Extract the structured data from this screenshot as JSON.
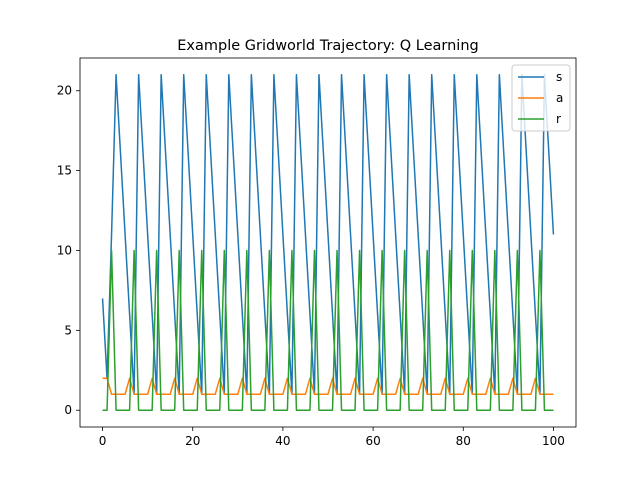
{
  "chart_data": {
    "type": "line",
    "title": "Example Gridworld Trajectory: Q Learning",
    "xlabel": "",
    "ylabel": "",
    "xlim": [
      -5,
      105
    ],
    "ylim": [
      -1.05,
      22.05
    ],
    "xticks": [
      0,
      20,
      40,
      60,
      80,
      100
    ],
    "yticks": [
      0,
      5,
      10,
      15,
      20
    ],
    "grid": false,
    "legend_position": "top-right",
    "series": [
      {
        "name": "s",
        "color": "#1f77b4",
        "x": [
          0,
          1,
          2,
          3,
          4,
          5,
          6,
          7,
          8,
          9,
          10,
          11,
          12,
          13,
          14,
          15,
          16,
          17,
          18,
          19,
          20,
          21,
          22,
          23,
          24,
          25,
          26,
          27,
          28,
          29,
          30,
          31,
          32,
          33,
          34,
          35,
          36,
          37,
          38,
          39,
          40,
          41,
          42,
          43,
          44,
          45,
          46,
          47,
          48,
          49,
          50,
          51,
          52,
          53,
          54,
          55,
          56,
          57,
          58,
          59,
          60,
          61,
          62,
          63,
          64,
          65,
          66,
          67,
          68,
          69,
          70,
          71,
          72,
          73,
          74,
          75,
          76,
          77,
          78,
          79,
          80,
          81,
          82,
          83,
          84,
          85,
          86,
          87,
          88,
          89,
          90,
          91,
          92,
          93,
          94,
          95,
          96,
          97,
          98,
          99,
          100
        ],
        "values": [
          7,
          2,
          11,
          21,
          16,
          11,
          6,
          1,
          21,
          16,
          11,
          6,
          1,
          21,
          16,
          11,
          6,
          1,
          21,
          16,
          11,
          6,
          1,
          21,
          16,
          11,
          6,
          1,
          21,
          16,
          11,
          6,
          1,
          21,
          16,
          11,
          6,
          1,
          21,
          16,
          11,
          6,
          1,
          21,
          16,
          11,
          6,
          1,
          21,
          16,
          11,
          6,
          1,
          21,
          16,
          11,
          6,
          1,
          21,
          16,
          11,
          6,
          1,
          21,
          16,
          11,
          6,
          1,
          21,
          16,
          11,
          6,
          1,
          21,
          16,
          11,
          6,
          1,
          21,
          16,
          11,
          6,
          1,
          21,
          16,
          11,
          6,
          1,
          21,
          16,
          11,
          6,
          1,
          21,
          16,
          11,
          6,
          1,
          21,
          16,
          11
        ]
      },
      {
        "name": "a",
        "color": "#ff7f0e",
        "x": [
          0,
          1,
          2,
          3,
          4,
          5,
          6,
          7,
          8,
          9,
          10,
          11,
          12,
          13,
          14,
          15,
          16,
          17,
          18,
          19,
          20,
          21,
          22,
          23,
          24,
          25,
          26,
          27,
          28,
          29,
          30,
          31,
          32,
          33,
          34,
          35,
          36,
          37,
          38,
          39,
          40,
          41,
          42,
          43,
          44,
          45,
          46,
          47,
          48,
          49,
          50,
          51,
          52,
          53,
          54,
          55,
          56,
          57,
          58,
          59,
          60,
          61,
          62,
          63,
          64,
          65,
          66,
          67,
          68,
          69,
          70,
          71,
          72,
          73,
          74,
          75,
          76,
          77,
          78,
          79,
          80,
          81,
          82,
          83,
          84,
          85,
          86,
          87,
          88,
          89,
          90,
          91,
          92,
          93,
          94,
          95,
          96,
          97,
          98,
          99,
          100
        ],
        "values": [
          2,
          2,
          1,
          1,
          1,
          1,
          2,
          1,
          1,
          1,
          1,
          2,
          1,
          1,
          1,
          1,
          2,
          1,
          1,
          1,
          1,
          2,
          1,
          1,
          1,
          1,
          2,
          1,
          1,
          1,
          1,
          2,
          1,
          1,
          1,
          1,
          2,
          1,
          1,
          1,
          1,
          2,
          1,
          1,
          1,
          1,
          2,
          1,
          1,
          1,
          1,
          2,
          1,
          1,
          1,
          1,
          2,
          1,
          1,
          1,
          1,
          2,
          1,
          1,
          1,
          1,
          2,
          1,
          1,
          1,
          1,
          2,
          1,
          1,
          1,
          1,
          2,
          1,
          1,
          1,
          1,
          2,
          1,
          1,
          1,
          1,
          2,
          1,
          1,
          1,
          1,
          2,
          1,
          1,
          1,
          1,
          2,
          1,
          1,
          1,
          1
        ]
      },
      {
        "name": "r",
        "color": "#2ca02c",
        "x": [
          0,
          1,
          2,
          3,
          4,
          5,
          6,
          7,
          8,
          9,
          10,
          11,
          12,
          13,
          14,
          15,
          16,
          17,
          18,
          19,
          20,
          21,
          22,
          23,
          24,
          25,
          26,
          27,
          28,
          29,
          30,
          31,
          32,
          33,
          34,
          35,
          36,
          37,
          38,
          39,
          40,
          41,
          42,
          43,
          44,
          45,
          46,
          47,
          48,
          49,
          50,
          51,
          52,
          53,
          54,
          55,
          56,
          57,
          58,
          59,
          60,
          61,
          62,
          63,
          64,
          65,
          66,
          67,
          68,
          69,
          70,
          71,
          72,
          73,
          74,
          75,
          76,
          77,
          78,
          79,
          80,
          81,
          82,
          83,
          84,
          85,
          86,
          87,
          88,
          89,
          90,
          91,
          92,
          93,
          94,
          95,
          96,
          97,
          98,
          99,
          100
        ],
        "values": [
          0,
          0,
          10,
          0,
          0,
          0,
          0,
          10,
          0,
          0,
          0,
          0,
          10,
          0,
          0,
          0,
          0,
          10,
          0,
          0,
          0,
          0,
          10,
          0,
          0,
          0,
          0,
          10,
          0,
          0,
          0,
          0,
          10,
          0,
          0,
          0,
          0,
          10,
          0,
          0,
          0,
          0,
          10,
          0,
          0,
          0,
          0,
          10,
          0,
          0,
          0,
          0,
          10,
          0,
          0,
          0,
          0,
          10,
          0,
          0,
          0,
          0,
          10,
          0,
          0,
          0,
          0,
          10,
          0,
          0,
          0,
          0,
          10,
          0,
          0,
          0,
          0,
          10,
          0,
          0,
          0,
          0,
          10,
          0,
          0,
          0,
          0,
          10,
          0,
          0,
          0,
          0,
          10,
          0,
          0,
          0,
          0,
          10,
          0,
          0,
          0
        ]
      }
    ]
  }
}
